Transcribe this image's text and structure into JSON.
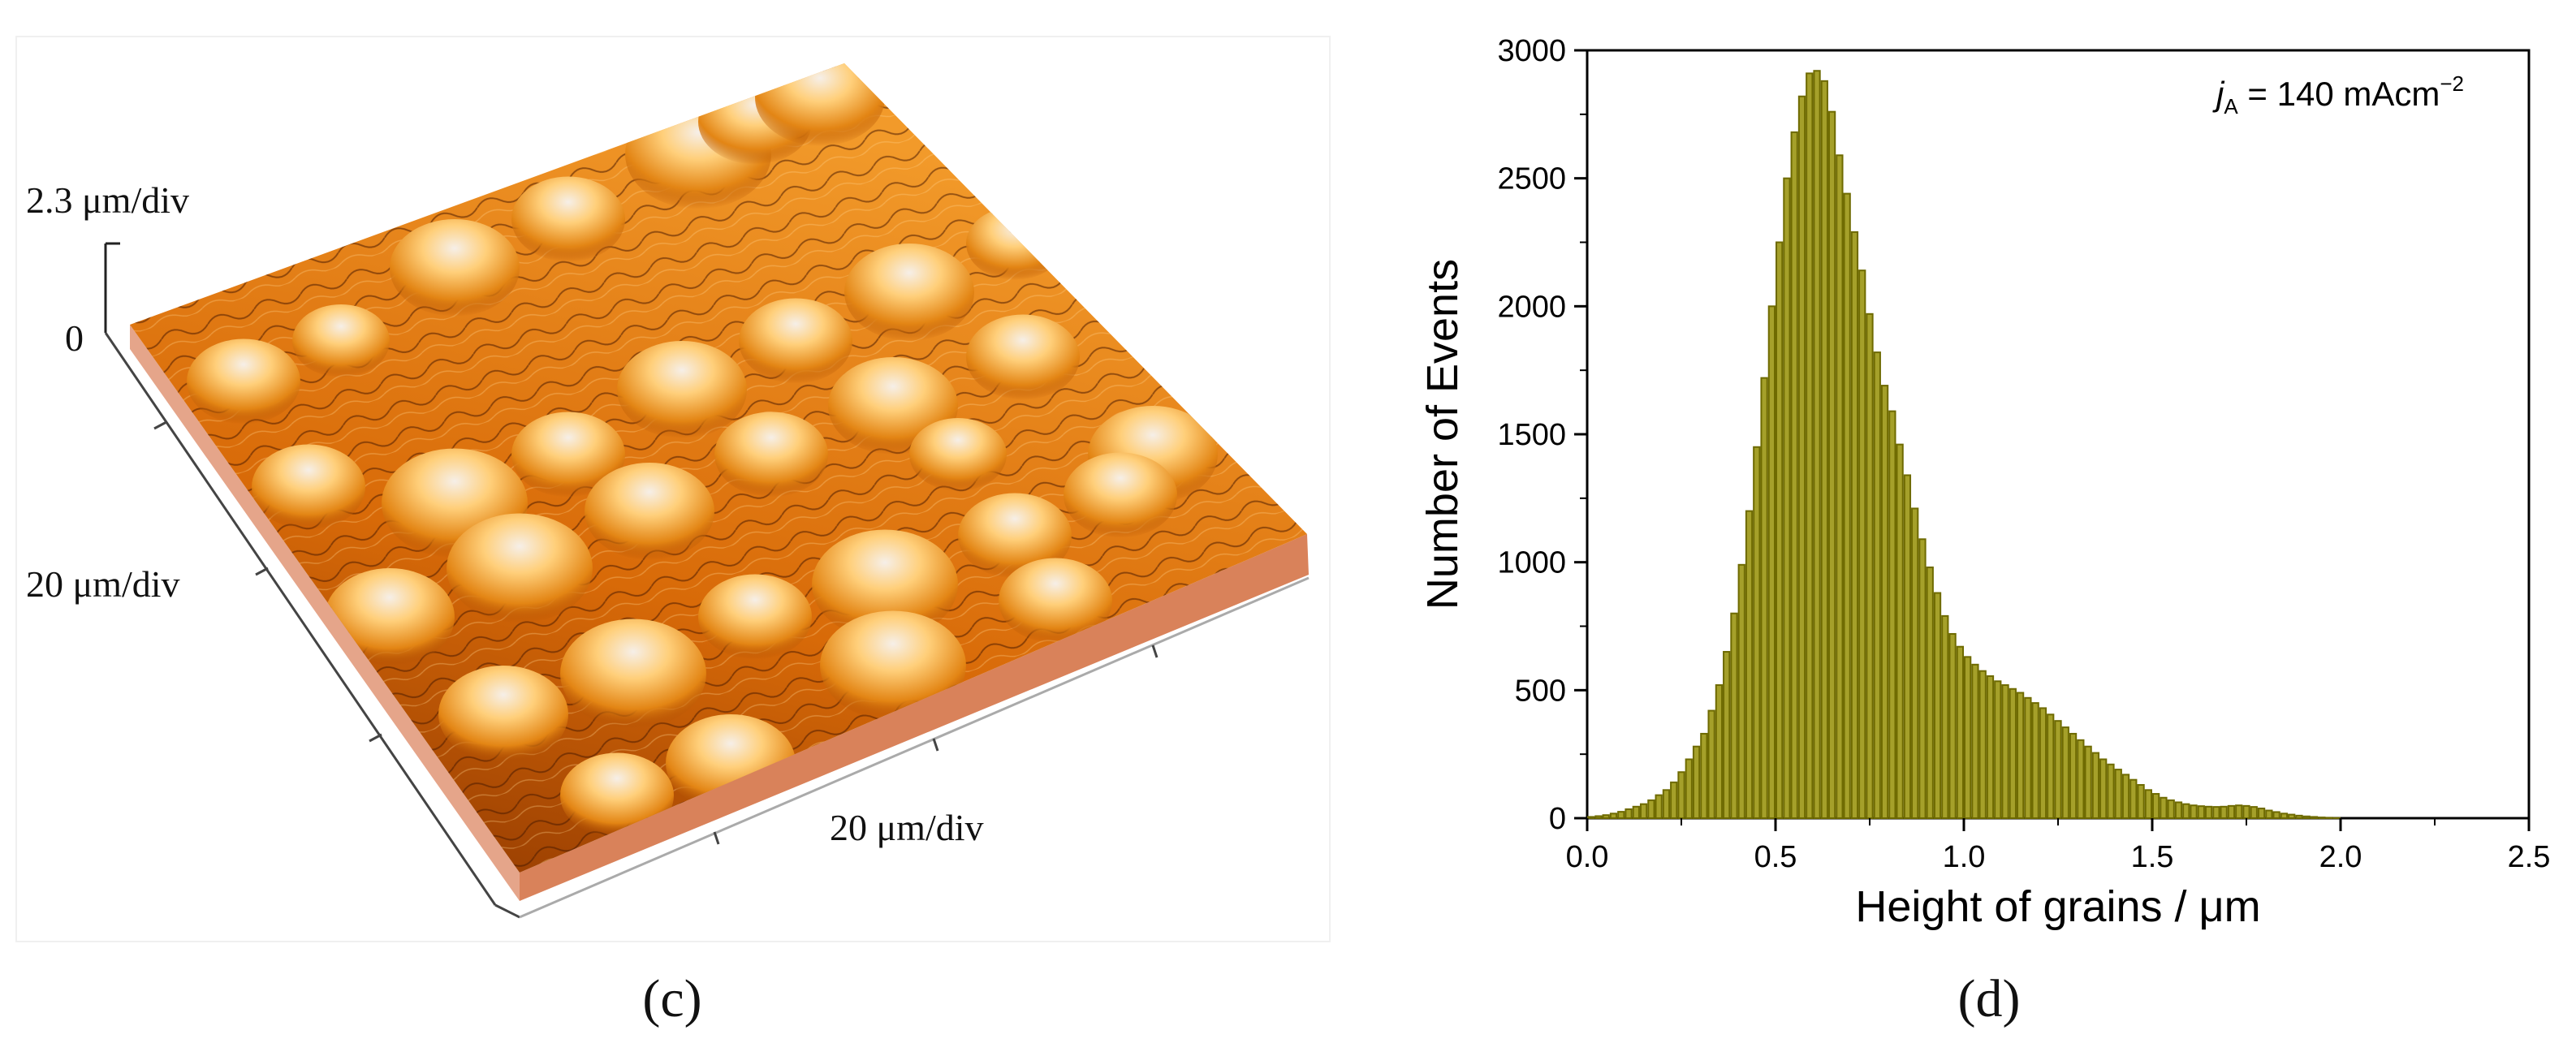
{
  "panel_c": {
    "caption": "(c)",
    "z_scale_label": "2.3 μm/div",
    "z_zero_label": "0",
    "y_scale_label": "20 μm/div",
    "x_scale_label": "20 μm/div",
    "surface_colors": {
      "base": "#8a3400",
      "mid": "#e07a10",
      "bright": "#ffb845",
      "peak": "#f4ece4",
      "side": "#d9825a"
    }
  },
  "panel_d": {
    "caption": "(d)",
    "annotation": {
      "symbol": "j",
      "subscript": "A",
      "text": " = 140 mAcm",
      "superscript": "−2"
    }
  },
  "colors": {
    "bar_fill": "#a5a02a",
    "bar_edge": "#6e6a00",
    "axis": "#000000"
  },
  "chart_data": {
    "type": "bar",
    "title": "",
    "xlabel": "Height of grains / μm",
    "ylabel": "Number of Events",
    "xlim": [
      0.0,
      2.5
    ],
    "ylim": [
      0,
      3000
    ],
    "xticks": [
      "0.0",
      "0.5",
      "1.0",
      "1.5",
      "2.0",
      "2.5"
    ],
    "xtick_values": [
      0.0,
      0.5,
      1.0,
      1.5,
      2.0,
      2.5
    ],
    "yticks": [
      "0",
      "500",
      "1000",
      "1500",
      "2000",
      "2500",
      "3000"
    ],
    "ytick_values": [
      0,
      500,
      1000,
      1500,
      2000,
      2500,
      3000
    ],
    "bin_width": 0.02,
    "bin_start": 0.0,
    "values": [
      5,
      8,
      12,
      18,
      25,
      35,
      45,
      55,
      70,
      90,
      110,
      140,
      180,
      230,
      280,
      330,
      420,
      520,
      650,
      800,
      990,
      1200,
      1450,
      1720,
      2000,
      2250,
      2500,
      2680,
      2820,
      2910,
      2920,
      2880,
      2760,
      2590,
      2440,
      2290,
      2140,
      1970,
      1820,
      1690,
      1590,
      1460,
      1340,
      1210,
      1090,
      980,
      880,
      790,
      720,
      670,
      630,
      600,
      575,
      555,
      535,
      520,
      505,
      490,
      470,
      450,
      430,
      405,
      380,
      355,
      330,
      305,
      280,
      255,
      230,
      210,
      190,
      170,
      150,
      130,
      110,
      95,
      80,
      70,
      62,
      55,
      50,
      47,
      45,
      44,
      45,
      48,
      50,
      48,
      44,
      38,
      30,
      24,
      18,
      14,
      10,
      7,
      5,
      3,
      2,
      1,
      0,
      0,
      0,
      0,
      0,
      0,
      0,
      0,
      0,
      0,
      0,
      0,
      0,
      0,
      0,
      0,
      0,
      0,
      0,
      0,
      0,
      0,
      0
    ]
  }
}
